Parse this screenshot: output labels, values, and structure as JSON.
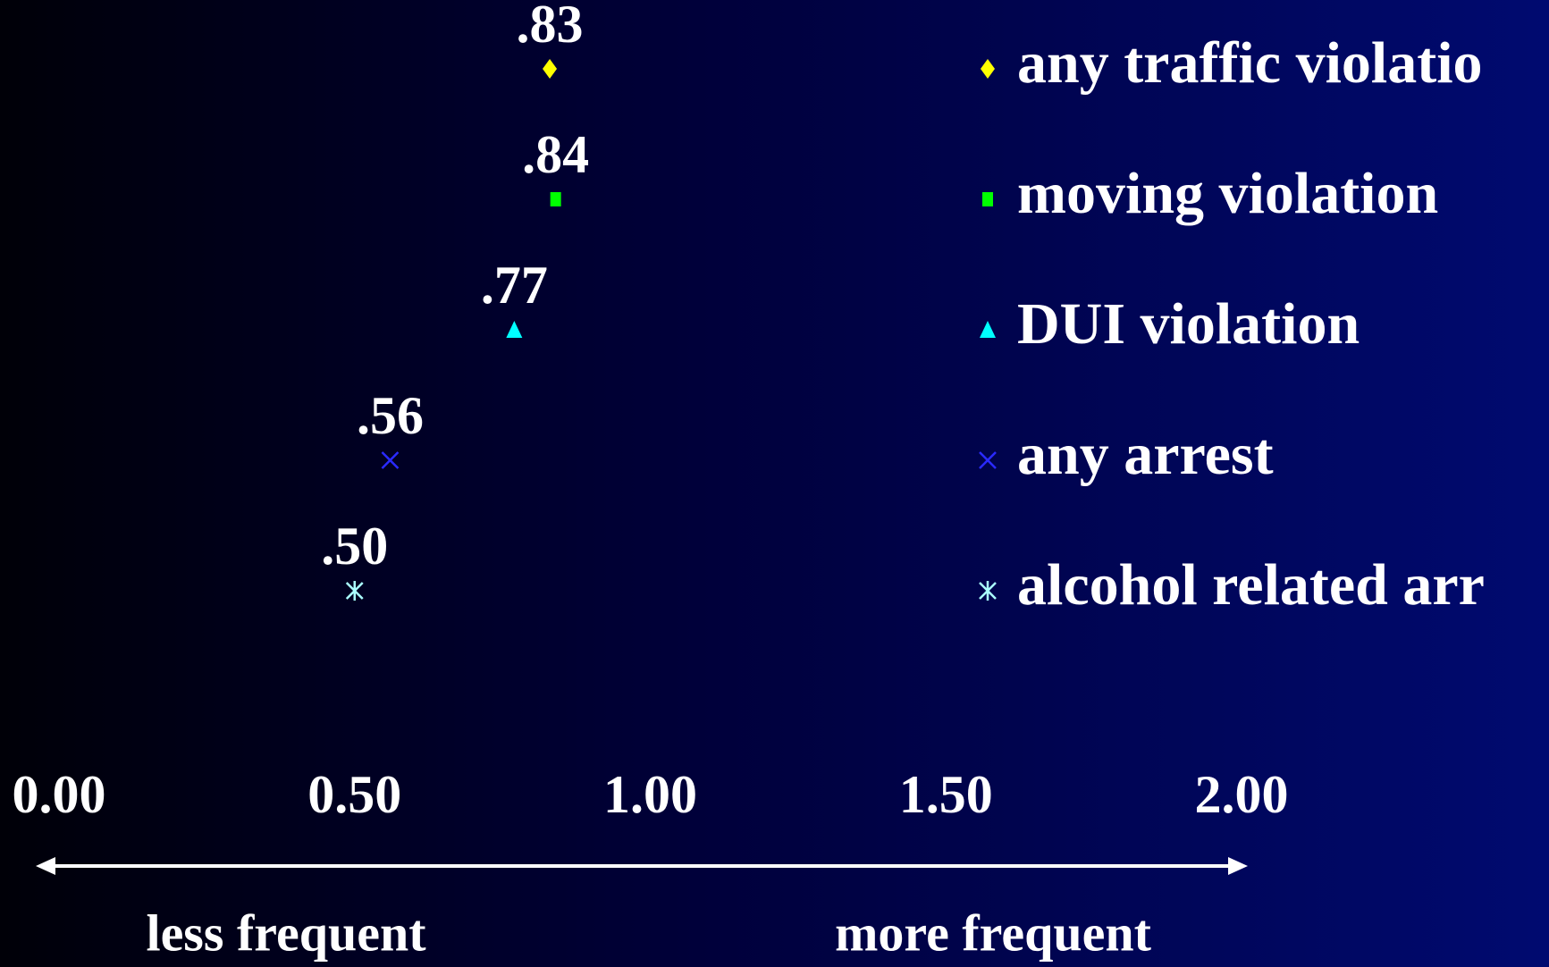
{
  "chart_data": {
    "type": "dot",
    "xlim": [
      0,
      2
    ],
    "xticks": [
      {
        "value": 0,
        "label": "0.00"
      },
      {
        "value": 0.5,
        "label": "0.50"
      },
      {
        "value": 1,
        "label": "1.00"
      },
      {
        "value": 1.5,
        "label": "1.50"
      },
      {
        "value": 2,
        "label": "2.00"
      }
    ],
    "axis_annotations": [
      "less frequent",
      "more frequent"
    ],
    "series": [
      {
        "name": "any traffic violatio",
        "color": "#ffff00",
        "marker": "diamond",
        "values": [
          0.83
        ],
        "value_labels": [
          ".83"
        ]
      },
      {
        "name": "moving violation",
        "color": "#00ff00",
        "marker": "square",
        "values": [
          0.84
        ],
        "value_labels": [
          ".84"
        ]
      },
      {
        "name": "DUI violation",
        "color": "#00ffff",
        "marker": "triangle",
        "values": [
          0.77
        ],
        "value_labels": [
          ".77"
        ]
      },
      {
        "name": "any arrest",
        "color": "#2a2aff",
        "marker": "x",
        "values": [
          0.56
        ],
        "value_labels": [
          ".56"
        ]
      },
      {
        "name": "alcohol related arr",
        "color": "#aaffff",
        "marker": "star",
        "values": [
          0.5
        ],
        "value_labels": [
          ".50"
        ]
      }
    ]
  }
}
